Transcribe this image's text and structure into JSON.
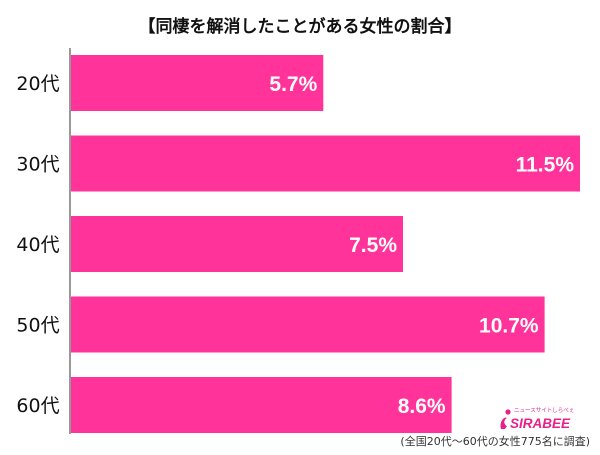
{
  "chart_data": {
    "type": "bar",
    "orientation": "horizontal",
    "title": "【同棲を解消したことがある女性の割合】",
    "categories": [
      "20代",
      "30代",
      "40代",
      "50代",
      "60代"
    ],
    "values": [
      5.7,
      11.5,
      7.5,
      10.7,
      8.6
    ],
    "value_labels": [
      "5.7%",
      "11.5%",
      "7.5%",
      "10.7%",
      "8.6%"
    ],
    "xlim": [
      0,
      11.5
    ],
    "grid": false,
    "legend": "none",
    "bar_color": "#ff3399",
    "note": "(全国20代〜60代の女性775名に調査)",
    "logo": {
      "text": "SIRABEE",
      "tagline": "ニュースサイトしらべぇ"
    }
  }
}
